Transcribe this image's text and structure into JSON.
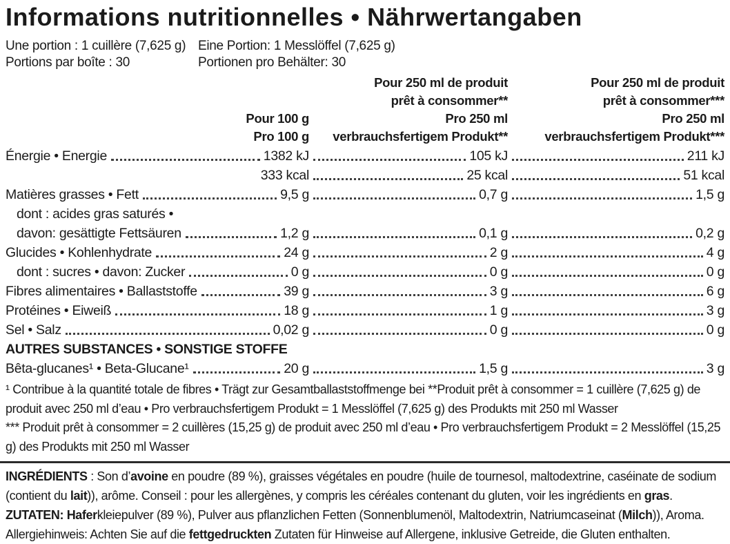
{
  "title": "Informations nutritionnelles • Nährwertangaben",
  "serving_info": {
    "fr_serving": "Une portion : 1 cuillère (7,625 g)",
    "de_serving": "Eine Portion: 1 Messlöffel (7,625 g)",
    "fr_servings_per_box": "Portions par boîte : 30",
    "de_servings_per_box": "Portionen pro Behälter: 30"
  },
  "table": {
    "header": {
      "col1": [
        "Pour 100 g",
        "Pro 100 g"
      ],
      "col2": [
        "Pour 250 ml de produit",
        "prêt à consommer**",
        "Pro 250 ml",
        "verbrauchsfertigem Produkt**"
      ],
      "col3": [
        "Pour 250 ml de produit",
        "prêt à consommer***",
        "Pro 250 ml",
        "verbrauchsfertigem Produkt***"
      ]
    },
    "rows": [
      {
        "label": "Énergie • Energie",
        "values": [
          "1382 kJ",
          "105 kJ",
          "211 kJ"
        ]
      },
      {
        "label": "",
        "values": [
          "333 kcal",
          "25 kcal",
          "51 kcal"
        ]
      },
      {
        "label": "Matières grasses • Fett",
        "values": [
          "9,5 g",
          "0,7 g",
          "1,5 g"
        ]
      },
      {
        "label": "dont : acides gras saturés •",
        "indent": true,
        "values": [
          "",
          "",
          ""
        ]
      },
      {
        "label": "davon: gesättigte Fettsäuren",
        "indent": true,
        "values": [
          "1,2 g",
          "0,1 g",
          "0,2 g"
        ]
      },
      {
        "label": "Glucides • Kohlenhydrate",
        "values": [
          "24 g",
          "2 g",
          "4 g"
        ]
      },
      {
        "label": "dont : sucres • davon: Zucker",
        "indent": true,
        "values": [
          "0 g",
          "0 g",
          "0 g"
        ]
      },
      {
        "label": "Fibres alimentaires • Ballaststoffe",
        "values": [
          "39 g",
          "3 g",
          "6 g"
        ]
      },
      {
        "label": "Protéines • Eiweiß",
        "values": [
          "18 g",
          "1 g",
          "3 g"
        ]
      },
      {
        "label": "Sel • Salz",
        "values": [
          "0,02 g",
          "0 g",
          "0 g"
        ]
      },
      {
        "label": "AUTRES SUBSTANCES • SONSTIGE STOFFE",
        "section": true,
        "values": [
          "",
          "",
          ""
        ]
      },
      {
        "label": "Bêta-glucanes¹ • Beta-Glucane¹",
        "values": [
          "20 g",
          "1,5 g",
          "3 g"
        ]
      }
    ]
  },
  "footnotes": [
    "¹ Contribue à la quantité totale de fibres • Trägt zur Gesamtballaststoffmenge bei **Produit prêt à consommer = 1 cuillère (7,625 g) de produit avec 250 ml d’eau • Pro verbrauchsfertigem Produkt = 1 Messlöffel (7,625 g) des Produkts mit 250 ml Wasser",
    "*** Produit prêt à consommer = 2 cuillères (15,25 g) de produit avec 250 ml d’eau • Pro verbrauchsfertigem Produkt = 2 Messlöffel (15,25 g) des Produkts mit 250 ml Wasser"
  ],
  "ingredients": {
    "fr_segments": [
      {
        "t": "INGRÉDIENTS",
        "b": true
      },
      {
        "t": " : Son d’",
        "b": false
      },
      {
        "t": "avoine",
        "b": true
      },
      {
        "t": " en poudre (89 %), graisses végétales en poudre (huile de tournesol, maltodextrine, caséinate de sodium (contient du ",
        "b": false
      },
      {
        "t": "lait",
        "b": true
      },
      {
        "t": ")), arôme. Conseil : pour les allergènes, y compris les céréales contenant du gluten, voir les ingrédients en ",
        "b": false
      },
      {
        "t": "gras",
        "b": true
      },
      {
        "t": ".",
        "b": false
      }
    ],
    "de_segments": [
      {
        "t": "ZUTATEN: Hafer",
        "b": true
      },
      {
        "t": "kleiepulver (89 %), Pulver aus pflanzlichen Fetten (Sonnenblumenöl, Maltodextrin, Natriumcaseinat (",
        "b": false
      },
      {
        "t": "Milch",
        "b": true
      },
      {
        "t": ")), Aroma.",
        "b": false
      }
    ],
    "allergy_segments": [
      {
        "t": "Allergiehinweis: Achten Sie auf die ",
        "b": false
      },
      {
        "t": "fettgedruckten",
        "b": true
      },
      {
        "t": " Zutaten für Hinweise auf Allergene, inklusive Getreide, die Gluten enthalten.",
        "b": false
      }
    ]
  }
}
